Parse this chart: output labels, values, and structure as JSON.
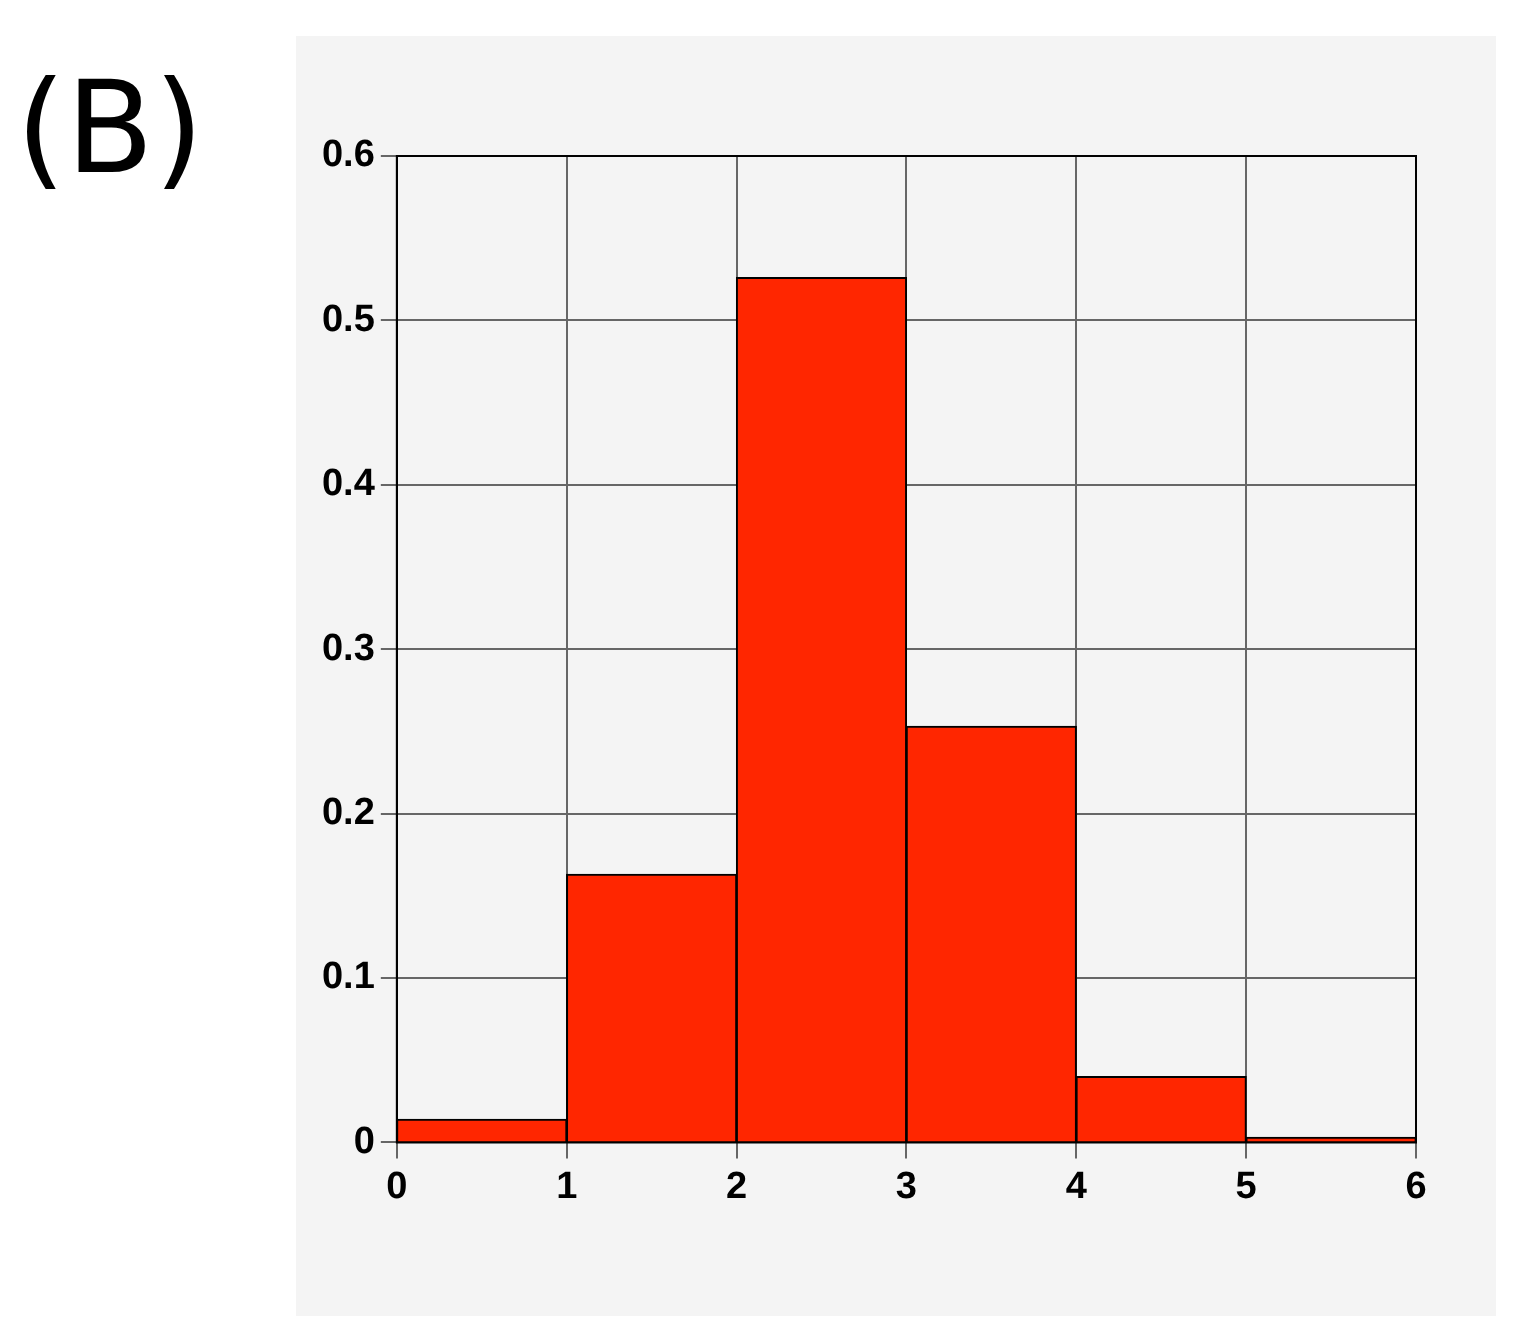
{
  "chart_data": {
    "type": "histogram",
    "title": "(B)",
    "bins": [
      0,
      1,
      2,
      3,
      4,
      5,
      6
    ],
    "values": [
      0.014,
      0.163,
      0.526,
      0.253,
      0.04,
      0.003
    ],
    "color": "#ff2600",
    "xlim": [
      0,
      6
    ],
    "xticks": [
      0,
      1,
      2,
      3,
      4,
      5,
      6
    ],
    "ylim": [
      0,
      0.6
    ],
    "yticks": [
      0,
      0.1,
      0.2,
      0.3,
      0.4,
      0.5,
      0.6
    ],
    "grid": true,
    "legend": false
  }
}
